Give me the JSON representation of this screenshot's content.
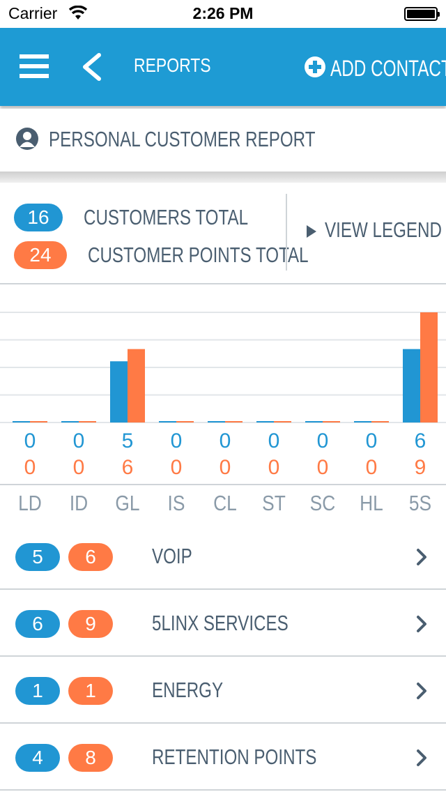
{
  "status_bar": {
    "carrier": "Carrier",
    "time": "2:26 PM"
  },
  "nav": {
    "title": "REPORTS",
    "add_contact_label": "ADD CONTACT",
    "menu_icon": "hamburger-menu-icon",
    "back_icon": "chevron-left-icon",
    "add_icon": "plus-circle-icon"
  },
  "report": {
    "label": "PERSONAL CUSTOMER REPORT",
    "icon": "person-icon"
  },
  "totals": {
    "customers_count": "16",
    "customers_label": "CUSTOMERS TOTAL",
    "points_count": "24",
    "points_label": "CUSTOMER POINTS TOTAL",
    "legend_label": "VIEW LEGEND"
  },
  "colors": {
    "brand_blue": "#1e9bd4",
    "customers_blue": "#2196d3",
    "points_orange": "#ff7a45",
    "text": "#4a5e70"
  },
  "chart_data": {
    "type": "bar",
    "categories": [
      "LD",
      "ID",
      "GL",
      "IS",
      "CL",
      "ST",
      "SC",
      "HL",
      "5S"
    ],
    "series": [
      {
        "values": [
          0,
          0,
          5,
          0,
          0,
          0,
          0,
          0,
          6
        ],
        "color": "#2196d3"
      },
      {
        "values": [
          0,
          0,
          6,
          0,
          0,
          0,
          0,
          0,
          9
        ],
        "color": "#ff7a45"
      }
    ],
    "ylim": [
      0,
      9
    ],
    "grid": true
  },
  "list": [
    {
      "customers": "5",
      "points": "6",
      "label": "VOIP"
    },
    {
      "customers": "6",
      "points": "9",
      "label": "5LINX SERVICES"
    },
    {
      "customers": "1",
      "points": "1",
      "label": "ENERGY"
    },
    {
      "customers": "4",
      "points": "8",
      "label": "RETENTION POINTS"
    }
  ]
}
